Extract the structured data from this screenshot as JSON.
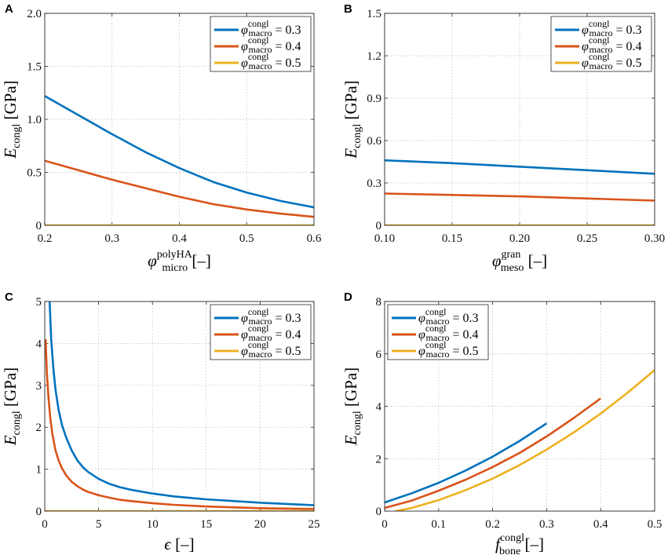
{
  "colors": {
    "series1": "#0072BD",
    "series2": "#D95319",
    "series3": "#EDB120"
  },
  "chart_data": [
    {
      "panel": "A",
      "type": "line",
      "xlabel": {
        "base": "φ",
        "sup": "polyHA",
        "sub": "micro",
        "unit": "[–]"
      },
      "ylabel": {
        "base": "E",
        "sub": "congl",
        "unit": "[GPa]"
      },
      "xlim": [
        0.2,
        0.6
      ],
      "ylim": [
        0,
        2
      ],
      "xticks": [
        0.2,
        0.3,
        0.4,
        0.5,
        0.6
      ],
      "xtick_labels": [
        "0.2",
        "0.3",
        "0.4",
        "0.5",
        "0.6"
      ],
      "yticks": [
        0,
        0.5,
        1,
        1.5,
        2
      ],
      "ytick_labels": [
        "0",
        "0.5",
        "1.0",
        "1.5",
        "2.0"
      ],
      "grid": true,
      "legend_position": "top-right",
      "series": [
        {
          "name": "φ_macro^congl = 0.3",
          "label": {
            "base": "φ",
            "sup": "congl",
            "sub": "macro",
            "value": "= 0.3"
          },
          "color_key": "series1",
          "x": [
            0.2,
            0.25,
            0.3,
            0.35,
            0.4,
            0.45,
            0.5,
            0.55,
            0.6
          ],
          "y": [
            1.22,
            1.04,
            0.86,
            0.69,
            0.54,
            0.41,
            0.31,
            0.23,
            0.17
          ]
        },
        {
          "name": "φ_macro^congl = 0.4",
          "label": {
            "base": "φ",
            "sup": "congl",
            "sub": "macro",
            "value": "= 0.4"
          },
          "color_key": "series2",
          "x": [
            0.2,
            0.25,
            0.3,
            0.35,
            0.4,
            0.45,
            0.5,
            0.55,
            0.6
          ],
          "y": [
            0.61,
            0.52,
            0.43,
            0.35,
            0.27,
            0.2,
            0.15,
            0.11,
            0.08
          ]
        },
        {
          "name": "φ_macro^congl = 0.5",
          "label": {
            "base": "φ",
            "sup": "congl",
            "sub": "macro",
            "value": "= 0.5"
          },
          "color_key": "series3",
          "x": [
            0.2,
            0.6
          ],
          "y": [
            0,
            0
          ]
        }
      ]
    },
    {
      "panel": "B",
      "type": "line",
      "xlabel": {
        "base": "φ",
        "sup": "gran",
        "sub": "meso",
        "unit": "[–]"
      },
      "ylabel": {
        "base": "E",
        "sub": "congl",
        "unit": "[GPa]"
      },
      "xlim": [
        0.1,
        0.3
      ],
      "ylim": [
        0,
        1.5
      ],
      "xticks": [
        0.1,
        0.15,
        0.2,
        0.25,
        0.3
      ],
      "xtick_labels": [
        "0.10",
        "0.15",
        "0.20",
        "0.25",
        "0.30"
      ],
      "yticks": [
        0,
        0.3,
        0.6,
        0.9,
        1.2,
        1.5
      ],
      "ytick_labels": [
        "0",
        "0.3",
        "0.6",
        "0.9",
        "1.2",
        "1.5"
      ],
      "grid": true,
      "legend_position": "top-right",
      "series": [
        {
          "name": "φ_macro^congl = 0.3",
          "label": {
            "base": "φ",
            "sup": "congl",
            "sub": "macro",
            "value": "= 0.3"
          },
          "color_key": "series1",
          "x": [
            0.1,
            0.15,
            0.2,
            0.25,
            0.3
          ],
          "y": [
            0.46,
            0.44,
            0.415,
            0.39,
            0.365
          ]
        },
        {
          "name": "φ_macro^congl = 0.4",
          "label": {
            "base": "φ",
            "sup": "congl",
            "sub": "macro",
            "value": "= 0.4"
          },
          "color_key": "series2",
          "x": [
            0.1,
            0.15,
            0.2,
            0.25,
            0.3
          ],
          "y": [
            0.225,
            0.215,
            0.205,
            0.19,
            0.175
          ]
        },
        {
          "name": "φ_macro^congl = 0.5",
          "label": {
            "base": "φ",
            "sup": "congl",
            "sub": "macro",
            "value": "= 0.5"
          },
          "color_key": "series3",
          "x": [
            0.1,
            0.3
          ],
          "y": [
            0,
            0
          ]
        }
      ]
    },
    {
      "panel": "C",
      "type": "line",
      "xlabel": {
        "base": "ϵ",
        "sup": "",
        "sub": "",
        "unit": "[–]"
      },
      "ylabel": {
        "base": "E",
        "sub": "congl",
        "unit": "[GPa]"
      },
      "xlim": [
        0,
        25
      ],
      "ylim": [
        0,
        5
      ],
      "xticks": [
        0,
        5,
        10,
        15,
        20,
        25
      ],
      "xtick_labels": [
        "0",
        "5",
        "10",
        "15",
        "20",
        "25"
      ],
      "yticks": [
        0,
        1,
        2,
        3,
        4,
        5
      ],
      "ytick_labels": [
        "0",
        "1",
        "2",
        "3",
        "4",
        "5"
      ],
      "grid": true,
      "legend_position": "top-right",
      "series": [
        {
          "name": "φ_macro^congl = 0.3",
          "label": {
            "base": "φ",
            "sup": "congl",
            "sub": "macro",
            "value": "= 0.3"
          },
          "color_key": "series1",
          "x": [
            0.45,
            0.6,
            0.8,
            1,
            1.3,
            1.6,
            2,
            2.5,
            3,
            3.5,
            4,
            5,
            6,
            7,
            8,
            10,
            12,
            15,
            20,
            25
          ],
          "y": [
            5.0,
            4.1,
            3.4,
            2.9,
            2.4,
            2.05,
            1.75,
            1.45,
            1.22,
            1.06,
            0.94,
            0.77,
            0.65,
            0.57,
            0.51,
            0.42,
            0.35,
            0.28,
            0.2,
            0.14
          ]
        },
        {
          "name": "φ_macro^congl = 0.4",
          "label": {
            "base": "φ",
            "sup": "congl",
            "sub": "macro",
            "value": "= 0.4"
          },
          "color_key": "series2",
          "x": [
            0.08,
            0.2,
            0.35,
            0.5,
            0.7,
            1,
            1.3,
            1.6,
            2,
            2.5,
            3,
            3.5,
            4,
            5,
            6,
            7,
            8,
            10,
            12,
            15,
            20,
            25
          ],
          "y": [
            4.1,
            3.3,
            2.7,
            2.25,
            1.85,
            1.45,
            1.2,
            1.02,
            0.85,
            0.7,
            0.6,
            0.52,
            0.46,
            0.38,
            0.32,
            0.27,
            0.24,
            0.19,
            0.15,
            0.11,
            0.07,
            0.05
          ]
        },
        {
          "name": "φ_macro^congl = 0.5",
          "label": {
            "base": "φ",
            "sup": "congl",
            "sub": "macro",
            "value": "= 0.5"
          },
          "color_key": "series3",
          "x": [
            0,
            25
          ],
          "y": [
            0,
            0
          ]
        }
      ]
    },
    {
      "panel": "D",
      "type": "line",
      "xlabel": {
        "base": "f",
        "sup": "congl",
        "sub": "bone",
        "unit": "[–]"
      },
      "ylabel": {
        "base": "E",
        "sub": "congl",
        "unit": "[GPa]"
      },
      "xlim": [
        0,
        0.5
      ],
      "ylim": [
        0,
        8
      ],
      "xticks": [
        0,
        0.1,
        0.2,
        0.3,
        0.4,
        0.5
      ],
      "xtick_labels": [
        "0",
        "0.1",
        "0.2",
        "0.3",
        "0.4",
        "0.5"
      ],
      "yticks": [
        0,
        2,
        4,
        6,
        8
      ],
      "ytick_labels": [
        "0",
        "2",
        "4",
        "6",
        "8"
      ],
      "grid": true,
      "legend_position": "top-left",
      "series": [
        {
          "name": "φ_macro^congl = 0.3",
          "label": {
            "base": "φ",
            "sup": "congl",
            "sub": "macro",
            "value": "= 0.3"
          },
          "color_key": "series1",
          "x": [
            0,
            0.05,
            0.1,
            0.15,
            0.2,
            0.25,
            0.3
          ],
          "y": [
            0.33,
            0.68,
            1.08,
            1.55,
            2.08,
            2.68,
            3.35
          ]
        },
        {
          "name": "φ_macro^congl = 0.4",
          "label": {
            "base": "φ",
            "sup": "congl",
            "sub": "macro",
            "value": "= 0.4"
          },
          "color_key": "series2",
          "x": [
            0,
            0.05,
            0.1,
            0.15,
            0.2,
            0.25,
            0.3,
            0.35,
            0.4
          ],
          "y": [
            0.12,
            0.4,
            0.78,
            1.2,
            1.68,
            2.22,
            2.85,
            3.55,
            4.3
          ]
        },
        {
          "name": "φ_macro^congl = 0.5",
          "label": {
            "base": "φ",
            "sup": "congl",
            "sub": "macro",
            "value": "= 0.5"
          },
          "color_key": "series3",
          "x": [
            0.02,
            0.05,
            0.1,
            0.15,
            0.2,
            0.25,
            0.3,
            0.35,
            0.4,
            0.45,
            0.5
          ],
          "y": [
            0,
            0.12,
            0.42,
            0.8,
            1.24,
            1.76,
            2.35,
            3.0,
            3.72,
            4.52,
            5.38
          ]
        }
      ]
    }
  ]
}
